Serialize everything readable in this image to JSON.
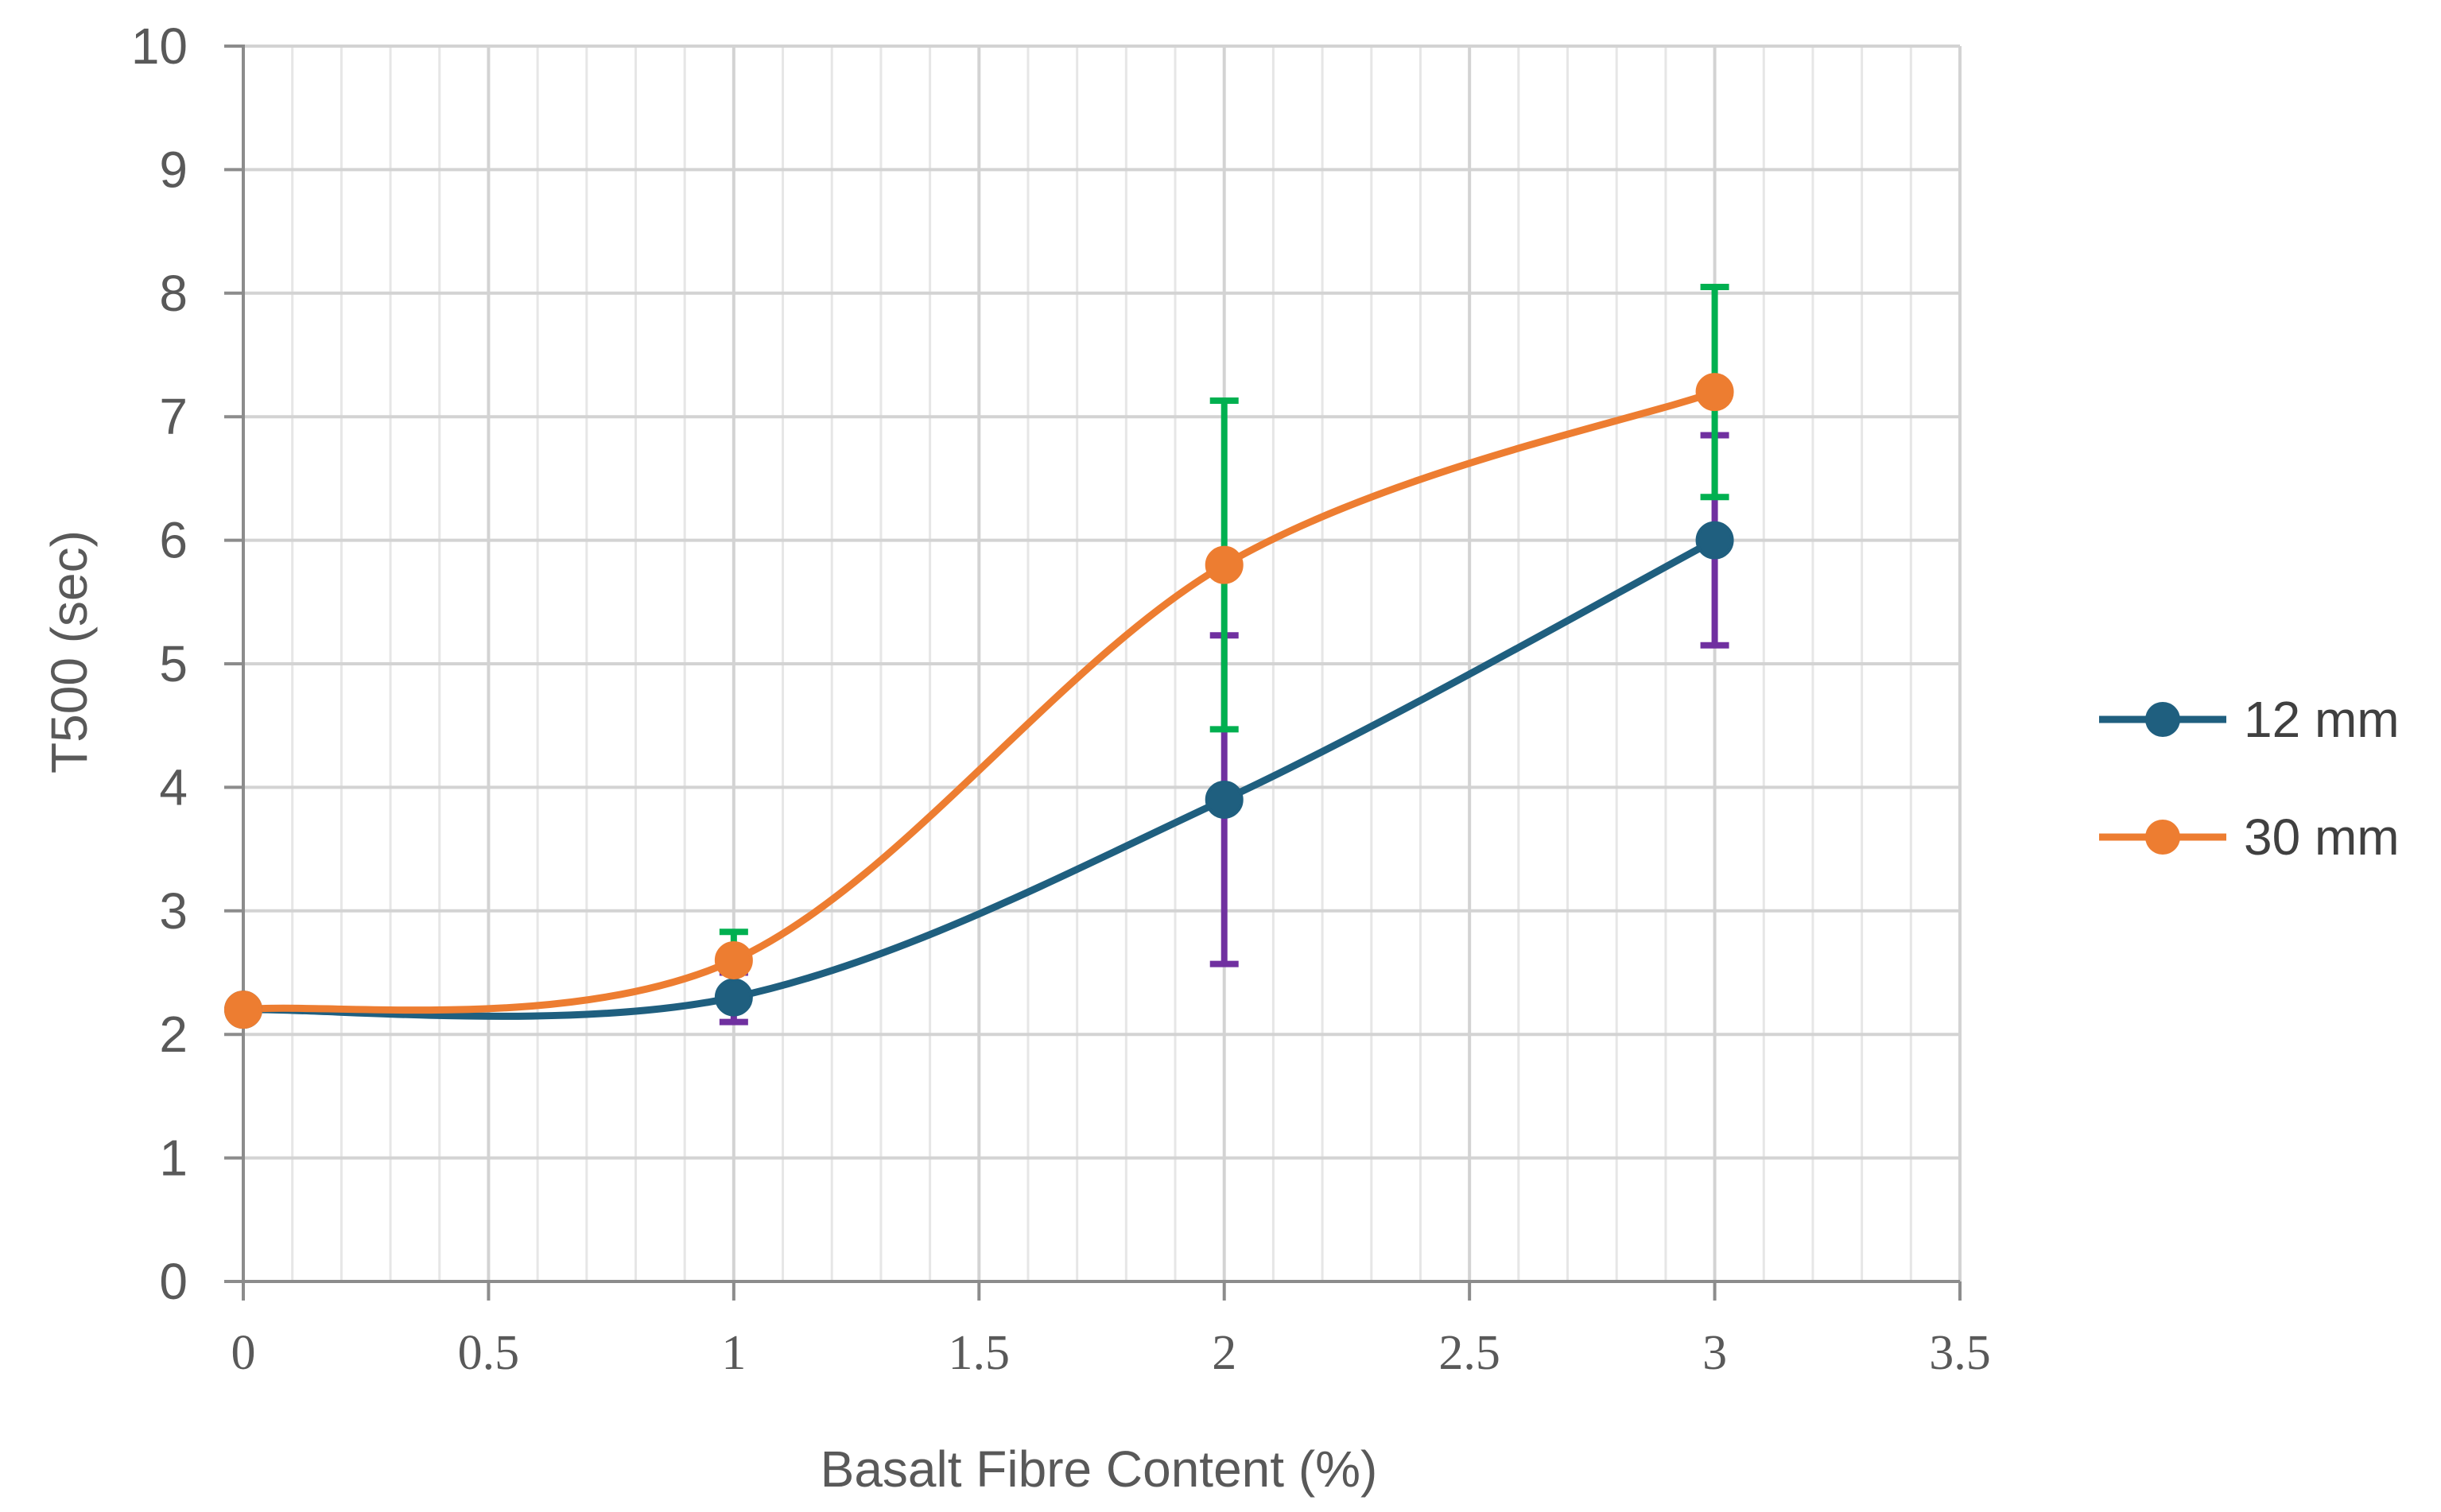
{
  "chart_data": {
    "type": "line",
    "xlabel": "Basalt Fibre Content (%)",
    "ylabel": "T500 (sec)",
    "xlim": [
      0,
      3.5
    ],
    "ylim": [
      0,
      10
    ],
    "x_ticks": [
      "0",
      "0.5",
      "1",
      "1.5",
      "2",
      "2.5",
      "3",
      "3.5"
    ],
    "y_ticks": [
      "0",
      "1",
      "2",
      "3",
      "4",
      "5",
      "6",
      "7",
      "8",
      "9",
      "10"
    ],
    "grid": true,
    "legend_position": "right",
    "series": [
      {
        "name": "12 mm",
        "color": "#1f5f7f",
        "error_color": "#7030a0",
        "x": [
          0,
          1,
          2,
          3
        ],
        "y": [
          2.2,
          2.3,
          3.9,
          6.0
        ],
        "error": [
          null,
          0.2,
          1.33,
          0.85
        ]
      },
      {
        "name": "30 mm",
        "color": "#ed7d31",
        "error_color": "#00b050",
        "x": [
          0,
          1,
          2,
          3
        ],
        "y": [
          2.2,
          2.6,
          5.8,
          7.2
        ],
        "error": [
          null,
          0.23,
          1.33,
          0.85
        ]
      }
    ]
  }
}
